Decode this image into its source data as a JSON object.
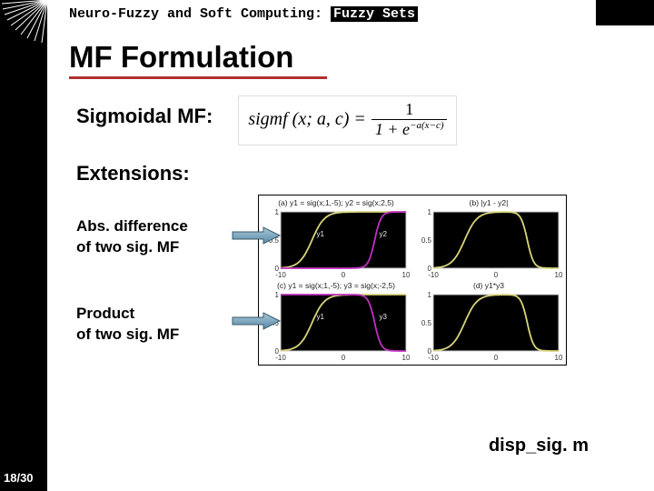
{
  "header": {
    "course_prefix": "Neuro-Fuzzy and Soft Computing: ",
    "course_highlight": "Fuzzy Sets"
  },
  "title": "MF Formulation",
  "sigmoidal": {
    "label": "Sigmoidal MF:",
    "formula_lhs": "sigmf (x; a, c) =",
    "formula_num": "1",
    "formula_den": "1 + e",
    "formula_exp": "−a(x−c)"
  },
  "extensions": {
    "label": "Extensions:",
    "item1_line1": "Abs. difference",
    "item1_line2": "of two sig. MF",
    "item2_line1": "Product",
    "item2_line2": "of two sig. MF"
  },
  "charts": {
    "background": "#000000",
    "axis_color": "#cccccc",
    "grid_color": "#444444",
    "curve_color_main": "#d8d47a",
    "curve_color_alt": "#c030c0",
    "panels": [
      {
        "title": "(a) y1 = sig(x;1,-5); y2 = sig(x;2,5)",
        "xlim": [
          -10,
          10
        ],
        "ylim": [
          0,
          1
        ],
        "yticks": [
          0,
          0.5,
          1
        ],
        "xticks": [
          -10,
          0,
          10
        ],
        "curves": [
          {
            "color": "#d8d47a",
            "type": "sigmoid",
            "a": 1,
            "c": -5,
            "label": "y1"
          },
          {
            "color": "#c030c0",
            "type": "sigmoid",
            "a": 2,
            "c": 5,
            "label": "y2"
          }
        ]
      },
      {
        "title": "(b) |y1 - y2|",
        "xlim": [
          -10,
          10
        ],
        "ylim": [
          0,
          1
        ],
        "yticks": [
          0,
          0.5,
          1
        ],
        "xticks": [
          -10,
          0,
          10
        ],
        "curves": [
          {
            "color": "#d8d47a",
            "type": "absdiff"
          }
        ]
      },
      {
        "title": "(c) y1 = sig(x;1,-5); y3 = sig(x;-2,5)",
        "xlim": [
          -10,
          10
        ],
        "ylim": [
          0,
          1
        ],
        "yticks": [
          0,
          0.5,
          1
        ],
        "xticks": [
          -10,
          0,
          10
        ],
        "curves": [
          {
            "color": "#d8d47a",
            "type": "sigmoid",
            "a": 1,
            "c": -5,
            "label": "y1"
          },
          {
            "color": "#c030c0",
            "type": "sigmoid",
            "a": -2,
            "c": 5,
            "label": "y3"
          }
        ]
      },
      {
        "title": "(d) y1*y3",
        "xlim": [
          -10,
          10
        ],
        "ylim": [
          0,
          1
        ],
        "yticks": [
          0,
          0.5,
          1
        ],
        "xticks": [
          -10,
          0,
          10
        ],
        "curves": [
          {
            "color": "#d8d47a",
            "type": "product"
          }
        ]
      }
    ]
  },
  "filename": "disp_sig. m",
  "page": "18/30",
  "colors": {
    "title_underline": "#b03030",
    "arrow": "#6fa8c8",
    "arrow_border": "#3a5a6a"
  }
}
